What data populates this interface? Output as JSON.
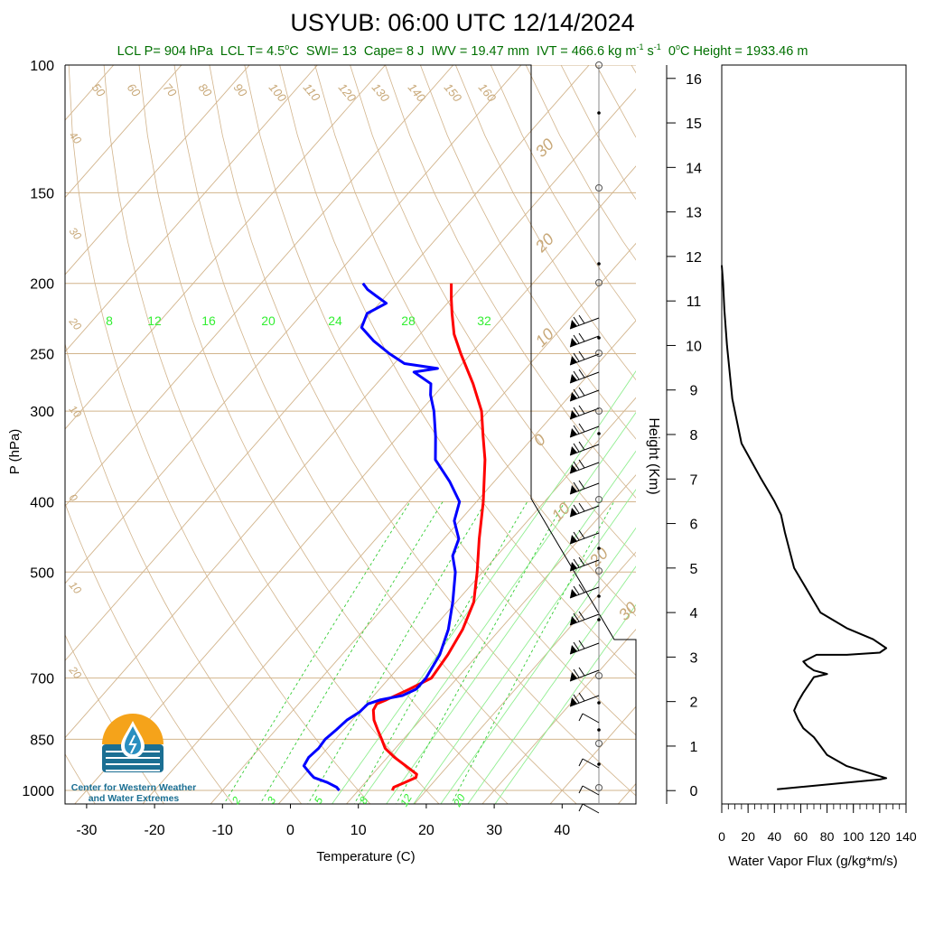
{
  "header": {
    "title": "USYUB: 06:00 UTC 12/14/2024",
    "stats": [
      {
        "key": "lcl_p",
        "text": "LCL P= 904 hPa"
      },
      {
        "key": "lcl_t_prefix",
        "text": "LCL T= 4.5"
      },
      {
        "key": "lcl_t_sup",
        "text": "o"
      },
      {
        "key": "lcl_t_unit",
        "text": "C"
      },
      {
        "key": "swi",
        "text": "SWI= 13"
      },
      {
        "key": "cape",
        "text": "Cape= 8 J"
      },
      {
        "key": "iwv",
        "text": "IWV = 19.47 mm"
      },
      {
        "key": "ivt_prefix",
        "text": "IVT = 466.6 kg m"
      },
      {
        "key": "ivt_sup1",
        "text": "-1"
      },
      {
        "key": "ivt_mid",
        "text": " s"
      },
      {
        "key": "ivt_sup2",
        "text": "-1"
      },
      {
        "key": "height_sup",
        "text": "o"
      },
      {
        "key": "height_text",
        "text": "C Height = 1933.46 m"
      },
      {
        "key": "height_prefix",
        "text": "0"
      }
    ]
  },
  "logo": {
    "line1": "Center for Western Weather",
    "line2": "and Water Extremes",
    "colors": {
      "sun": "#f5a31a",
      "water": "#1b6f93",
      "drop": "#2a8fc0"
    }
  },
  "colors": {
    "temperature": "#ff0000",
    "dewpoint": "#0000ff",
    "isotherm": "#d2b48c",
    "dry_adiabat": "#d2b48c",
    "moist_adiabat": "#90ee90",
    "mixing_ratio": "#33cc33",
    "isobar": "#d2b48c",
    "label_green": "#33ee33",
    "label_tan": "#c8a878"
  },
  "chart_data": [
    {
      "type": "line",
      "kind": "skew-t log-p",
      "xlabel": "Temperature (C)",
      "ylabel": "P (hPa)",
      "x_ticks": [
        -30,
        -20,
        -10,
        0,
        10,
        20,
        30,
        40
      ],
      "p_ticks": [
        100,
        150,
        200,
        250,
        300,
        400,
        500,
        700,
        850,
        1000
      ],
      "xlim": [
        -34,
        40
      ],
      "plim": [
        1050,
        100
      ],
      "isotherm_labels": [
        -80,
        -70,
        -60,
        -50,
        -40,
        -30,
        -20,
        -10,
        0,
        10,
        20,
        30,
        40
      ],
      "isotherm_label_text": [
        "50",
        "60",
        "70",
        "80",
        "90",
        "100",
        "110",
        "120",
        "130",
        "140",
        "150",
        "160",
        "40",
        "30",
        "20",
        "10",
        "0",
        "10",
        "20",
        "30",
        "30",
        "20",
        "10",
        "0",
        "10",
        "20",
        "30"
      ],
      "upper_labels": [
        "50",
        "60",
        "70",
        "80",
        "90",
        "100",
        "110",
        "120",
        "130",
        "140",
        "150",
        "160"
      ],
      "left_labels": [
        "40",
        "30",
        "20",
        "10",
        "0",
        "10",
        "20"
      ],
      "right_labels": [
        "30",
        "20",
        "10",
        "0",
        "10",
        "20",
        "30"
      ],
      "moist_labels": [
        "8",
        "12",
        "16",
        "20",
        "24",
        "28",
        "32"
      ],
      "mixing_labels": [
        "2",
        "3",
        "5",
        "8",
        "12",
        "20"
      ],
      "series": [
        {
          "key": "temperature",
          "points": [
            [
              1000,
              15.0
            ],
            [
              990,
              14.8
            ],
            [
              975,
              15.8
            ],
            [
              960,
              16.8
            ],
            [
              950,
              16.5
            ],
            [
              925,
              13.8
            ],
            [
              900,
              11.0
            ],
            [
              875,
              8.5
            ],
            [
              850,
              6.8
            ],
            [
              825,
              5.0
            ],
            [
              800,
              3.2
            ],
            [
              775,
              1.8
            ],
            [
              760,
              1.5
            ],
            [
              750,
              2.4
            ],
            [
              725,
              4.4
            ],
            [
              700,
              6.2
            ],
            [
              650,
              5.6
            ],
            [
              600,
              4.5
            ],
            [
              550,
              2.6
            ],
            [
              500,
              -0.8
            ],
            [
              450,
              -4.8
            ],
            [
              400,
              -9.0
            ],
            [
              350,
              -14.2
            ],
            [
              325,
              -17.5
            ],
            [
              300,
              -21.0
            ],
            [
              275,
              -25.8
            ],
            [
              250,
              -31.5
            ],
            [
              235,
              -35.0
            ],
            [
              220,
              -38.0
            ],
            [
              210,
              -40.0
            ],
            [
              200,
              -42.0
            ]
          ]
        },
        {
          "key": "dewpoint",
          "points": [
            [
              1000,
              7.2
            ],
            [
              990,
              6.4
            ],
            [
              975,
              4.4
            ],
            [
              960,
              1.8
            ],
            [
              950,
              0.9
            ],
            [
              925,
              -1.2
            ],
            [
              900,
              -1.6
            ],
            [
              875,
              -1.3
            ],
            [
              850,
              -1.5
            ],
            [
              825,
              -1.1
            ],
            [
              800,
              -0.8
            ],
            [
              780,
              0.0
            ],
            [
              760,
              0.2
            ],
            [
              750,
              1.5
            ],
            [
              740,
              4.2
            ],
            [
              725,
              5.4
            ],
            [
              700,
              5.4
            ],
            [
              650,
              4.4
            ],
            [
              600,
              2.4
            ],
            [
              550,
              -0.5
            ],
            [
              500,
              -4.0
            ],
            [
              475,
              -6.5
            ],
            [
              450,
              -7.8
            ],
            [
              425,
              -10.8
            ],
            [
              400,
              -12.5
            ],
            [
              375,
              -16.6
            ],
            [
              350,
              -21.5
            ],
            [
              325,
              -24.5
            ],
            [
              300,
              -28.0
            ],
            [
              285,
              -30.6
            ],
            [
              275,
              -32.0
            ],
            [
              265,
              -36.0
            ],
            [
              262,
              -33.0
            ],
            [
              258,
              -38.5
            ],
            [
              250,
              -42.0
            ],
            [
              240,
              -46.0
            ],
            [
              230,
              -49.5
            ],
            [
              220,
              -50.5
            ],
            [
              213,
              -49.0
            ],
            [
              208,
              -51.5
            ],
            [
              204,
              -53.5
            ],
            [
              200,
              -55.0
            ]
          ]
        }
      ],
      "legend": "none",
      "grid": true
    },
    {
      "type": "line",
      "key": "wvflux",
      "xlabel": "Water Vapor Flux (g/kg*m/s)",
      "ylabel": "Height (Km)",
      "x_ticks": [
        0,
        20,
        40,
        60,
        80,
        100,
        120,
        140
      ],
      "y_ticks": [
        0,
        1,
        2,
        3,
        4,
        5,
        6,
        7,
        8,
        9,
        10,
        11,
        12,
        13,
        14,
        15,
        16
      ],
      "xlim": [
        0,
        140
      ],
      "ylim": [
        -0.3,
        16.3
      ],
      "x": [
        42,
        120,
        125,
        95,
        80,
        75,
        70,
        62,
        58,
        55,
        58,
        62,
        70,
        80,
        70,
        65,
        62,
        72,
        95,
        120,
        125,
        115,
        95,
        75,
        55,
        48,
        45,
        40,
        30,
        15,
        8,
        4,
        2,
        1,
        0
      ],
      "y": [
        0.03,
        0.25,
        0.28,
        0.55,
        0.8,
        1.0,
        1.2,
        1.4,
        1.6,
        1.8,
        2.0,
        2.2,
        2.55,
        2.62,
        2.7,
        2.8,
        2.9,
        3.05,
        3.05,
        3.1,
        3.2,
        3.4,
        3.65,
        4.0,
        5.0,
        5.8,
        6.2,
        6.5,
        7.0,
        7.8,
        8.8,
        10.0,
        10.8,
        11.4,
        11.8
      ]
    }
  ],
  "wind_barbs": {
    "count": 34,
    "note_values": [
      "flag",
      "flag",
      "flag"
    ]
  }
}
